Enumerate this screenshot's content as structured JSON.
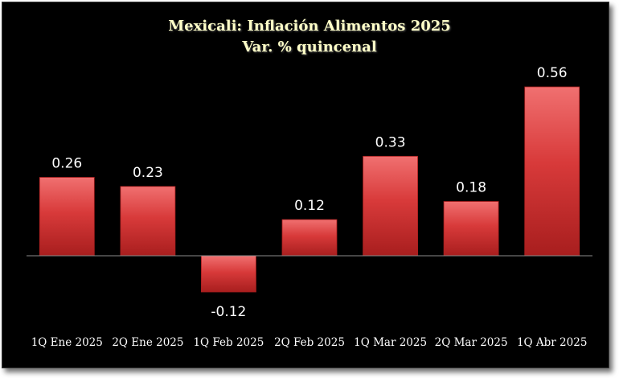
{
  "chart_data": {
    "type": "bar",
    "title": "Mexicali: Inflación Alimentos 2025",
    "subtitle": "Var. % quincenal",
    "categories": [
      "1Q Ene 2025",
      "2Q Ene 2025",
      "1Q Feb 2025",
      "2Q Feb 2025",
      "1Q Mar 2025",
      "2Q Mar 2025",
      "1Q Abr 2025"
    ],
    "values": [
      0.26,
      0.23,
      -0.12,
      0.12,
      0.33,
      0.18,
      0.56
    ],
    "value_labels": [
      "0.26",
      "0.23",
      "-0.12",
      "0.12",
      "0.33",
      "0.18",
      "0.56"
    ],
    "xlabel": "",
    "ylabel": "",
    "grid": false,
    "legend": "none",
    "colors": {
      "background": "#000000",
      "bar_light": "#f07070",
      "bar": "#d83a3a",
      "bar_dark": "#a81e1e",
      "title": "#ffffc8",
      "text": "#ffffff",
      "axis": "#8c8c8c"
    }
  }
}
